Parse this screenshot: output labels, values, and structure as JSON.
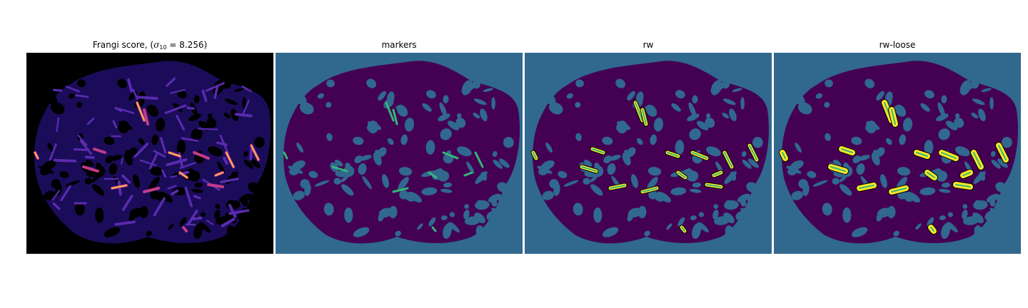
{
  "panels": [
    {
      "title_prefix": "Frangi score, (",
      "title_sigma": "σ",
      "title_subscript": "10",
      "title_suffix": " = 8.256)",
      "colormap": "magma"
    },
    {
      "title": "markers",
      "colormap": "viridis"
    },
    {
      "title": "rw",
      "colormap": "viridis"
    },
    {
      "title": "rw-loose",
      "colormap": "viridis"
    }
  ],
  "colors": {
    "frangi_background": "#000000",
    "frangi_tissue": "#1b0c5a",
    "frangi_vessel_low": "#5a2bb0",
    "frangi_vessel_mid": "#c13c8a",
    "frangi_vessel_high": "#fcb44c",
    "label_background": "#31688e",
    "label_tissue": "#440154",
    "label_marker": "#35b779",
    "label_segment": "#fde725"
  }
}
